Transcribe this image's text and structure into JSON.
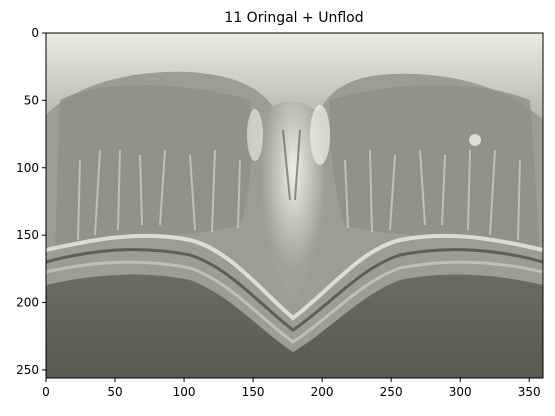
{
  "figure": {
    "title": "11  Oringal + Unflod"
  },
  "axes": {
    "x_ticks": [
      "0",
      "50",
      "100",
      "150",
      "200",
      "250",
      "300",
      "350"
    ],
    "x_tick_values": [
      0,
      50,
      100,
      150,
      200,
      250,
      300,
      350
    ],
    "y_ticks": [
      "0",
      "50",
      "100",
      "150",
      "200",
      "250"
    ],
    "y_tick_values": [
      0,
      50,
      100,
      150,
      200,
      250
    ],
    "x_range": [
      0,
      360
    ],
    "y_range": [
      0,
      256
    ],
    "y_inverted": true
  },
  "image": {
    "description_colors": {
      "light": "#e9ebdf",
      "mid": "#9c9e91",
      "dark": "#67685c",
      "bottom": "#5d5e53"
    }
  }
}
